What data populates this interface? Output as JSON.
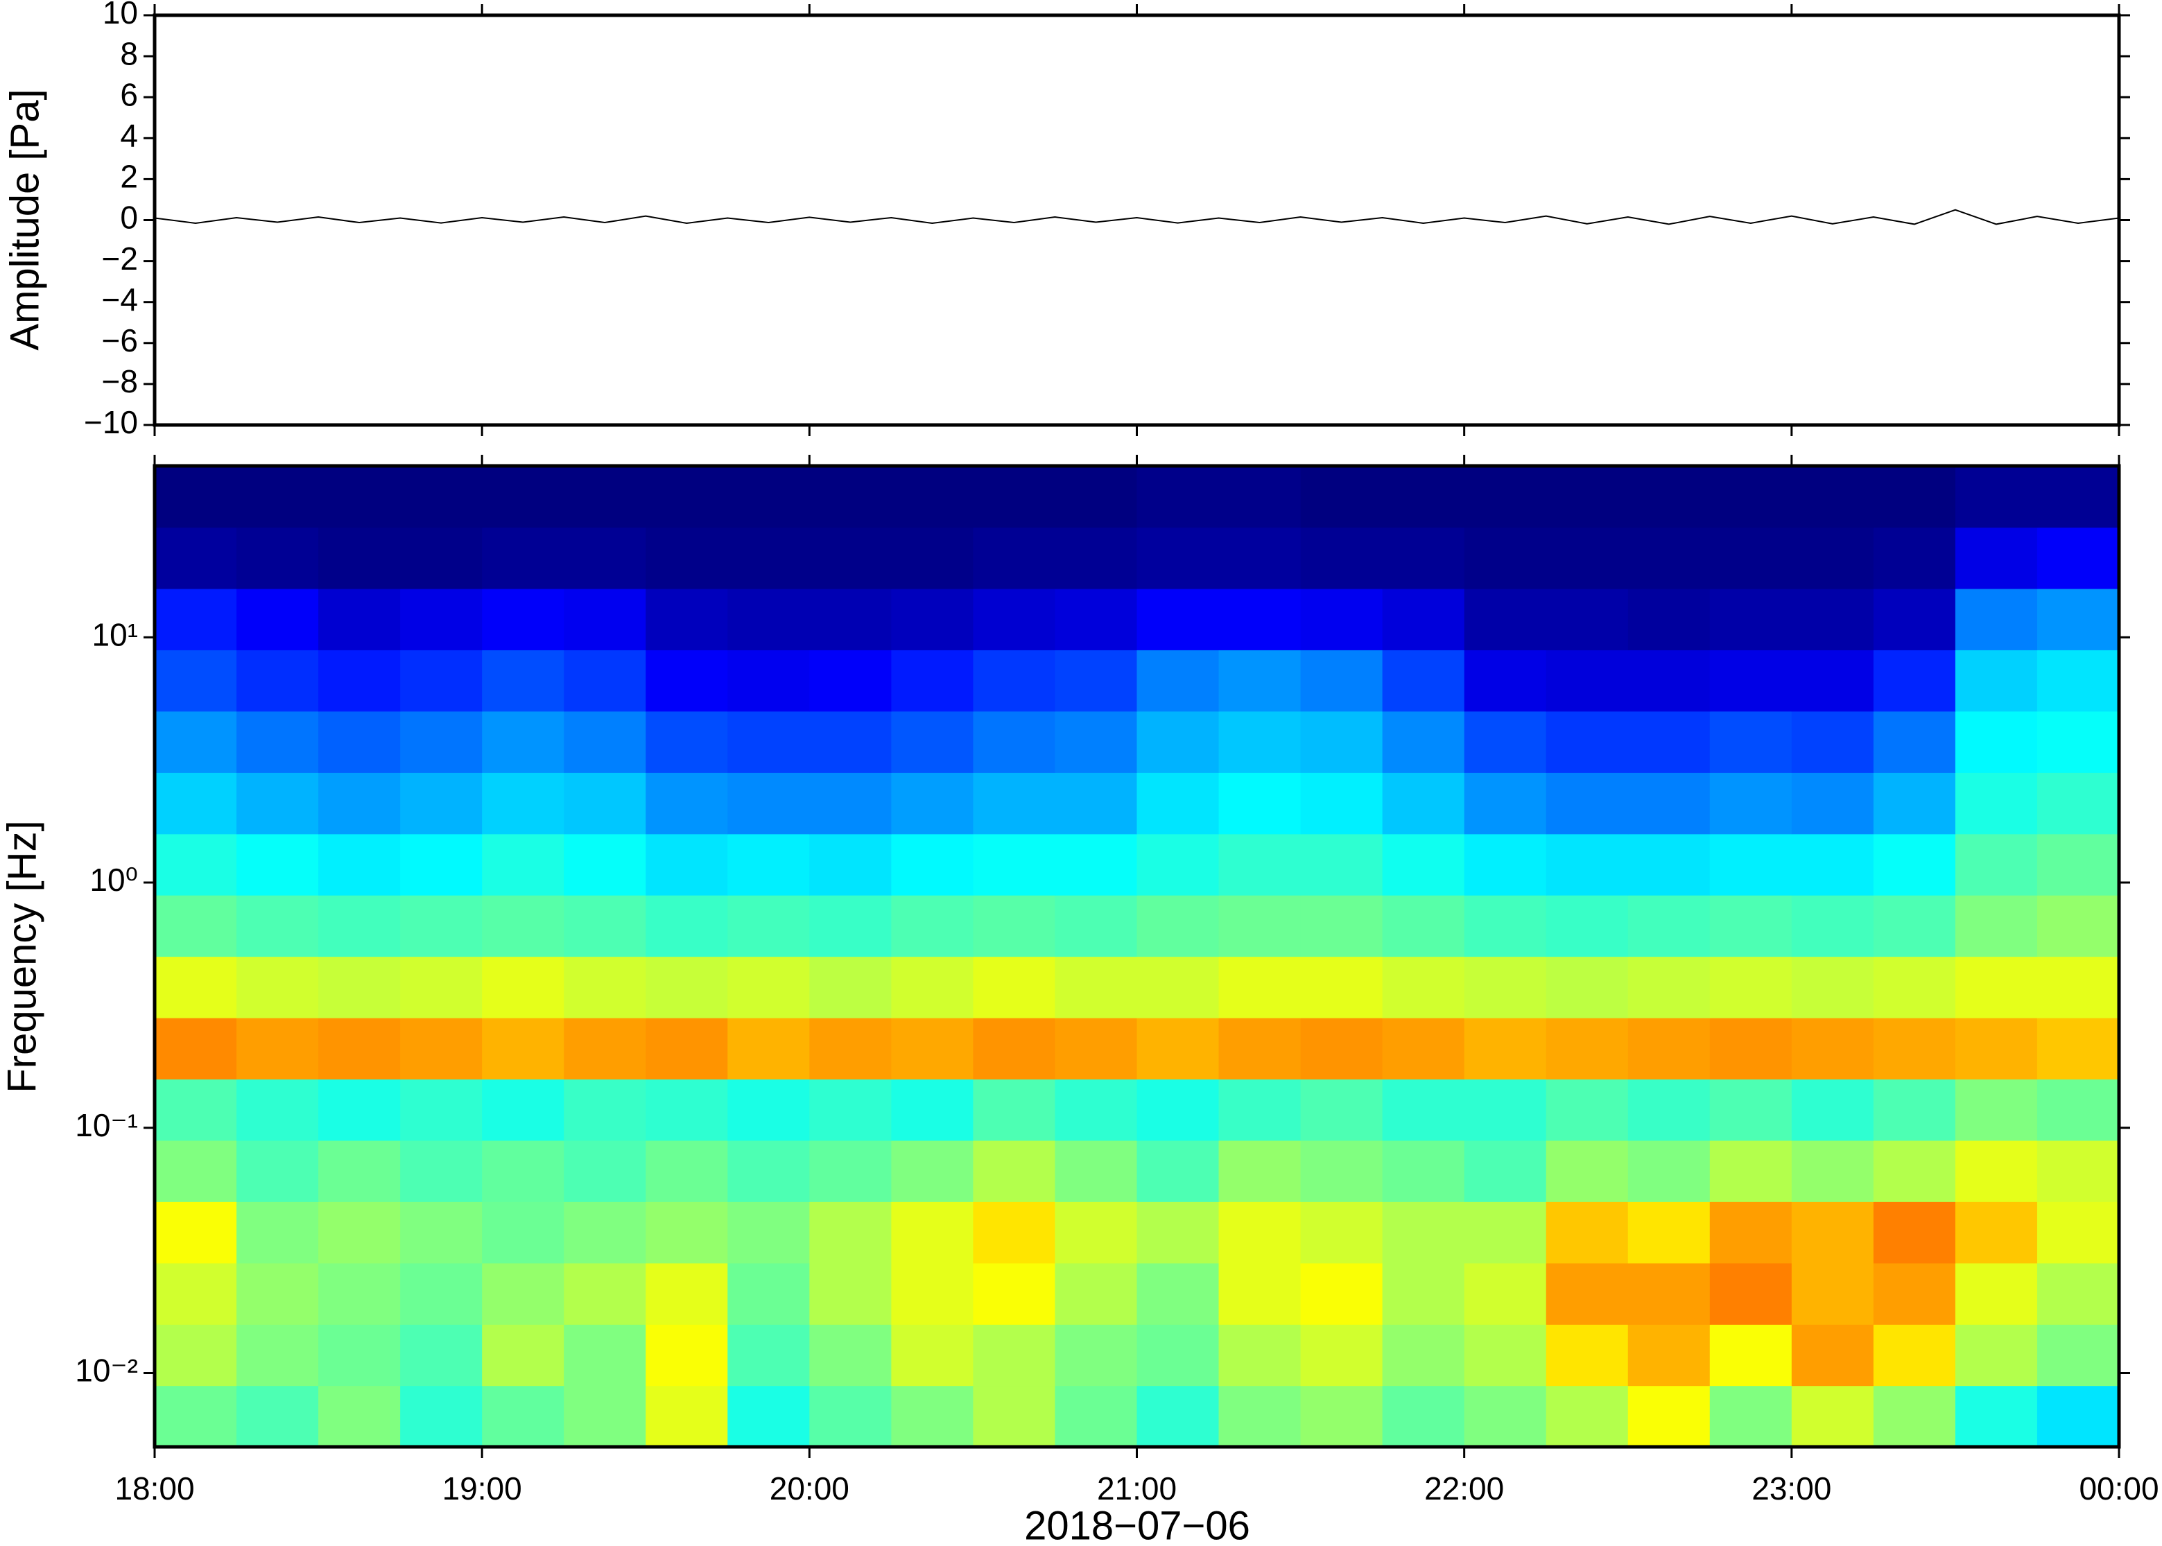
{
  "chart_data": [
    {
      "type": "line",
      "ylabel": "Amplitude [Pa]",
      "color": "#000000",
      "xlim": [
        18,
        24
      ],
      "xticks": [
        18,
        19,
        20,
        21,
        22,
        23,
        24
      ],
      "ylim": [
        -10,
        10
      ],
      "yticks": [
        {
          "value": -10,
          "label": "−10"
        },
        {
          "value": -8,
          "label": "−8"
        },
        {
          "value": -6,
          "label": "−6"
        },
        {
          "value": -4,
          "label": "−4"
        },
        {
          "value": -2,
          "label": "−2"
        },
        0,
        2,
        4,
        6,
        8,
        10
      ],
      "x": [
        18,
        18.125,
        18.25,
        18.375,
        18.5,
        18.625,
        18.75,
        18.875,
        19,
        19.125,
        19.25,
        19.375,
        19.5,
        19.625,
        19.75,
        19.875,
        20,
        20.125,
        20.25,
        20.375,
        20.5,
        20.625,
        20.75,
        20.875,
        21,
        21.125,
        21.25,
        21.375,
        21.5,
        21.625,
        21.75,
        21.875,
        22,
        22.125,
        22.25,
        22.375,
        22.5,
        22.625,
        22.75,
        22.875,
        23,
        23.125,
        23.25,
        23.375,
        23.5,
        23.625,
        23.75,
        23.875,
        24
      ],
      "values": [
        0.1,
        -0.15,
        0.12,
        -0.1,
        0.15,
        -0.12,
        0.1,
        -0.14,
        0.12,
        -0.1,
        0.15,
        -0.12,
        0.2,
        -0.15,
        0.1,
        -0.12,
        0.14,
        -0.1,
        0.12,
        -0.15,
        0.1,
        -0.12,
        0.15,
        -0.1,
        0.12,
        -0.14,
        0.1,
        -0.12,
        0.15,
        -0.1,
        0.12,
        -0.15,
        0.1,
        -0.12,
        0.2,
        -0.18,
        0.15,
        -0.2,
        0.18,
        -0.15,
        0.2,
        -0.18,
        0.15,
        -0.2,
        0.5,
        -0.2,
        0.18,
        -0.15,
        0.1
      ]
    },
    {
      "type": "heatmap",
      "ylabel": "Frequency [Hz]",
      "xlabel": "2018−07−06",
      "colormap": "jet",
      "ylog": true,
      "xlim": [
        18,
        24
      ],
      "xticks": [
        {
          "value": 18,
          "label": "18:00"
        },
        {
          "value": 19,
          "label": "19:00"
        },
        {
          "value": 20,
          "label": "20:00"
        },
        {
          "value": 21,
          "label": "21:00"
        },
        {
          "value": 22,
          "label": "22:00"
        },
        {
          "value": 23,
          "label": "23:00"
        },
        {
          "value": 24,
          "label": "00:00"
        }
      ],
      "ylim": [
        0.005,
        50
      ],
      "yticks": [
        {
          "value": 0.01,
          "label": "10⁻²"
        },
        {
          "value": 0.1,
          "label": "10⁻¹"
        },
        {
          "value": 1,
          "label": "10⁰"
        },
        {
          "value": 10,
          "label": "10¹"
        }
      ],
      "xbins": [
        18,
        18.25,
        18.5,
        18.75,
        19,
        19.25,
        19.5,
        19.75,
        20,
        20.25,
        20.5,
        20.75,
        21,
        21.25,
        21.5,
        21.75,
        22,
        22.25,
        22.5,
        22.75,
        23,
        23.25,
        23.5,
        23.75,
        24
      ],
      "ybins": [
        0.005,
        0.00889,
        0.0158,
        0.0281,
        0.05,
        0.0889,
        0.158,
        0.281,
        0.5,
        0.889,
        1.58,
        2.81,
        5,
        8.89,
        15.8,
        28.1,
        50
      ],
      "values": [
        [
          0.48,
          0.45,
          0.5,
          0.42,
          0.47,
          0.5,
          0.6,
          0.4,
          0.46,
          0.5,
          0.55,
          0.48,
          0.42,
          0.5,
          0.52,
          0.47,
          0.5,
          0.55,
          0.62,
          0.5,
          0.58,
          0.52,
          0.4,
          0.35
        ],
        [
          0.55,
          0.5,
          0.48,
          0.45,
          0.55,
          0.5,
          0.62,
          0.45,
          0.5,
          0.58,
          0.55,
          0.5,
          0.48,
          0.55,
          0.58,
          0.52,
          0.55,
          0.65,
          0.7,
          0.62,
          0.72,
          0.65,
          0.55,
          0.5
        ],
        [
          0.58,
          0.52,
          0.5,
          0.48,
          0.52,
          0.55,
          0.6,
          0.48,
          0.55,
          0.6,
          0.62,
          0.55,
          0.5,
          0.6,
          0.62,
          0.55,
          0.58,
          0.72,
          0.72,
          0.75,
          0.7,
          0.72,
          0.6,
          0.55
        ],
        [
          0.62,
          0.5,
          0.52,
          0.5,
          0.48,
          0.5,
          0.52,
          0.5,
          0.55,
          0.6,
          0.65,
          0.58,
          0.55,
          0.6,
          0.58,
          0.55,
          0.55,
          0.68,
          0.65,
          0.72,
          0.7,
          0.75,
          0.68,
          0.6
        ],
        [
          0.5,
          0.45,
          0.48,
          0.45,
          0.47,
          0.45,
          0.48,
          0.45,
          0.47,
          0.5,
          0.55,
          0.5,
          0.45,
          0.52,
          0.5,
          0.48,
          0.45,
          0.52,
          0.5,
          0.55,
          0.52,
          0.55,
          0.6,
          0.58
        ],
        [
          0.45,
          0.42,
          0.4,
          0.42,
          0.4,
          0.43,
          0.42,
          0.4,
          0.42,
          0.4,
          0.45,
          0.42,
          0.4,
          0.43,
          0.45,
          0.42,
          0.42,
          0.45,
          0.43,
          0.45,
          0.42,
          0.45,
          0.5,
          0.48
        ],
        [
          0.74,
          0.72,
          0.73,
          0.72,
          0.7,
          0.72,
          0.73,
          0.7,
          0.72,
          0.71,
          0.73,
          0.72,
          0.7,
          0.72,
          0.73,
          0.72,
          0.7,
          0.71,
          0.72,
          0.73,
          0.72,
          0.71,
          0.7,
          0.68
        ],
        [
          0.6,
          0.58,
          0.57,
          0.58,
          0.6,
          0.58,
          0.57,
          0.58,
          0.56,
          0.58,
          0.6,
          0.58,
          0.58,
          0.6,
          0.6,
          0.58,
          0.57,
          0.56,
          0.57,
          0.58,
          0.57,
          0.58,
          0.6,
          0.6
        ],
        [
          0.47,
          0.45,
          0.44,
          0.45,
          0.46,
          0.45,
          0.43,
          0.44,
          0.43,
          0.45,
          0.46,
          0.45,
          0.47,
          0.48,
          0.48,
          0.46,
          0.44,
          0.43,
          0.44,
          0.45,
          0.44,
          0.45,
          0.5,
          0.52
        ],
        [
          0.4,
          0.38,
          0.36,
          0.37,
          0.4,
          0.38,
          0.35,
          0.36,
          0.35,
          0.37,
          0.38,
          0.38,
          0.4,
          0.42,
          0.42,
          0.39,
          0.36,
          0.35,
          0.35,
          0.36,
          0.36,
          0.38,
          0.45,
          0.47
        ],
        [
          0.33,
          0.3,
          0.28,
          0.3,
          0.33,
          0.32,
          0.27,
          0.26,
          0.26,
          0.28,
          0.3,
          0.3,
          0.35,
          0.37,
          0.36,
          0.32,
          0.27,
          0.25,
          0.25,
          0.27,
          0.26,
          0.3,
          0.4,
          0.42
        ],
        [
          0.27,
          0.24,
          0.22,
          0.24,
          0.27,
          0.25,
          0.2,
          0.19,
          0.19,
          0.21,
          0.24,
          0.25,
          0.3,
          0.32,
          0.31,
          0.26,
          0.2,
          0.18,
          0.18,
          0.2,
          0.19,
          0.24,
          0.37,
          0.38
        ],
        [
          0.2,
          0.17,
          0.15,
          0.17,
          0.2,
          0.18,
          0.12,
          0.11,
          0.12,
          0.15,
          0.18,
          0.19,
          0.25,
          0.27,
          0.25,
          0.19,
          0.1,
          0.09,
          0.09,
          0.1,
          0.1,
          0.16,
          0.33,
          0.35
        ],
        [
          0.15,
          0.12,
          0.08,
          0.1,
          0.12,
          0.11,
          0.06,
          0.05,
          0.05,
          0.06,
          0.08,
          0.09,
          0.12,
          0.12,
          0.11,
          0.09,
          0.04,
          0.04,
          0.03,
          0.04,
          0.04,
          0.06,
          0.25,
          0.27
        ],
        [
          0.03,
          0.02,
          0.01,
          0.01,
          0.02,
          0.02,
          0.01,
          0.01,
          0.01,
          0.01,
          0.02,
          0.02,
          0.03,
          0.03,
          0.02,
          0.02,
          0.01,
          0.01,
          0.01,
          0.01,
          0.01,
          0.02,
          0.1,
          0.12
        ],
        [
          0,
          0,
          0,
          0,
          0,
          0,
          0,
          0,
          0,
          0,
          0,
          0,
          0.01,
          0.01,
          0,
          0,
          0,
          0,
          0,
          0,
          0,
          0,
          0.02,
          0.02
        ]
      ]
    }
  ]
}
